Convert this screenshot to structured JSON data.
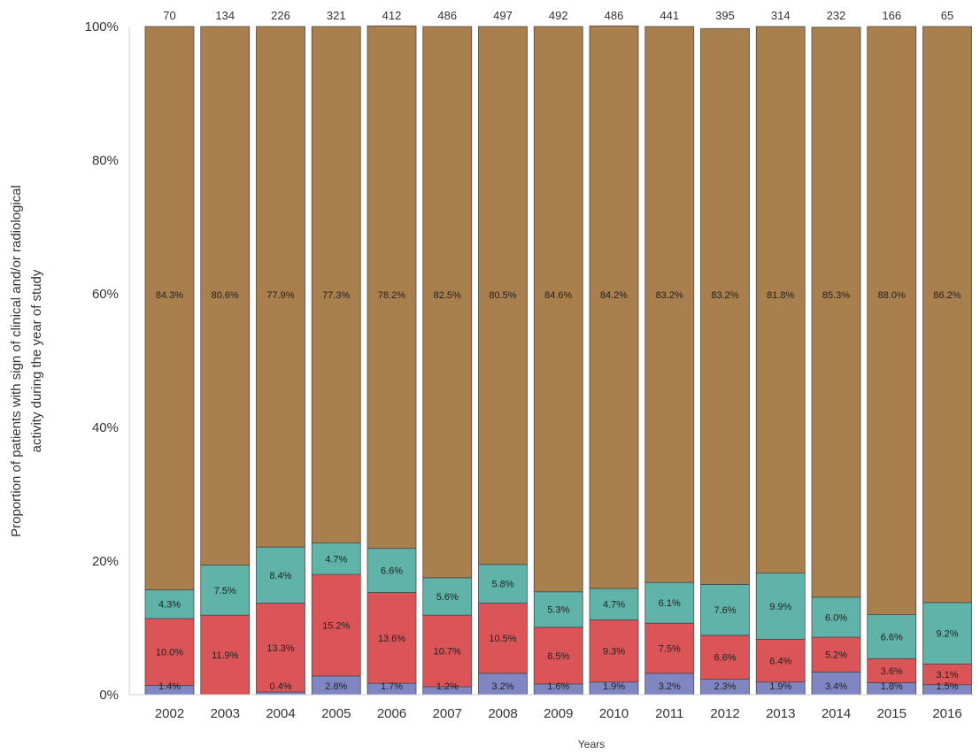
{
  "chart_data": {
    "type": "bar",
    "stacked": true,
    "title": "",
    "xlabel": "Years",
    "ylabel": "Proportion of patients with sign of clinical and/or radiological activity during the year of study",
    "ylabel_lines": [
      "Proportion of patients with sign of clinical and/or radiological",
      "activity during the year of study"
    ],
    "ylim": [
      0,
      100
    ],
    "yticks": [
      "0%",
      "20%",
      "40%",
      "60%",
      "80%",
      "100%"
    ],
    "ytick_values": [
      0,
      20,
      40,
      60,
      80,
      100
    ],
    "grid": false,
    "categories": [
      "2002",
      "2003",
      "2004",
      "2005",
      "2006",
      "2007",
      "2008",
      "2009",
      "2010",
      "2011",
      "2012",
      "2013",
      "2014",
      "2015",
      "2016"
    ],
    "n_per_year": [
      "70",
      "134",
      "226",
      "321",
      "412",
      "486",
      "497",
      "492",
      "486",
      "441",
      "395",
      "314",
      "232",
      "166",
      "65"
    ],
    "series": [
      {
        "color": "#7f86c1",
        "values": [
          1.4,
          0,
          0.4,
          2.8,
          1.7,
          1.2,
          3.2,
          1.6,
          1.9,
          3.2,
          2.3,
          1.9,
          3.4,
          1.8,
          1.5
        ],
        "labels": [
          "1.4%",
          "",
          "0.4%",
          "2.8%",
          "1.7%",
          "1.2%",
          "3.2%",
          "1.6%",
          "1.9%",
          "3.2%",
          "2.3%",
          "1.9%",
          "3.4%",
          "1.8%",
          "1.5%"
        ]
      },
      {
        "color": "#db5458",
        "values": [
          10.0,
          11.9,
          13.3,
          15.2,
          13.6,
          10.7,
          10.5,
          8.5,
          9.3,
          7.5,
          6.6,
          6.4,
          5.2,
          3.6,
          3.1
        ],
        "labels": [
          "10.0%",
          "11.9%",
          "13.3%",
          "15.2%",
          "13.6%",
          "10.7%",
          "10.5%",
          "8.5%",
          "9.3%",
          "7.5%",
          "6.6%",
          "6.4%",
          "5.2%",
          "3.6%",
          "3.1%"
        ]
      },
      {
        "color": "#5fb3a8",
        "values": [
          4.3,
          7.5,
          8.4,
          4.7,
          6.6,
          5.6,
          5.8,
          5.3,
          4.7,
          6.1,
          7.6,
          9.9,
          6.0,
          6.6,
          9.2
        ],
        "labels": [
          "4.3%",
          "7.5%",
          "8.4%",
          "4.7%",
          "6.6%",
          "5.6%",
          "5.8%",
          "5.3%",
          "4.7%",
          "6.1%",
          "7.6%",
          "9.9%",
          "6.0%",
          "6.6%",
          "9.2%"
        ]
      },
      {
        "color": "#a97f4e",
        "values": [
          84.3,
          80.6,
          77.9,
          77.3,
          78.2,
          82.5,
          80.5,
          84.6,
          84.2,
          83.2,
          83.2,
          81.8,
          85.3,
          88.0,
          86.2
        ],
        "labels": [
          "84.3%",
          "80.6%",
          "77.9%",
          "77.3%",
          "78.2%",
          "82.5%",
          "80.5%",
          "84.6%",
          "84.2%",
          "83.2%",
          "83.2%",
          "81.8%",
          "85.3%",
          "88.0%",
          "86.2%"
        ]
      }
    ]
  }
}
